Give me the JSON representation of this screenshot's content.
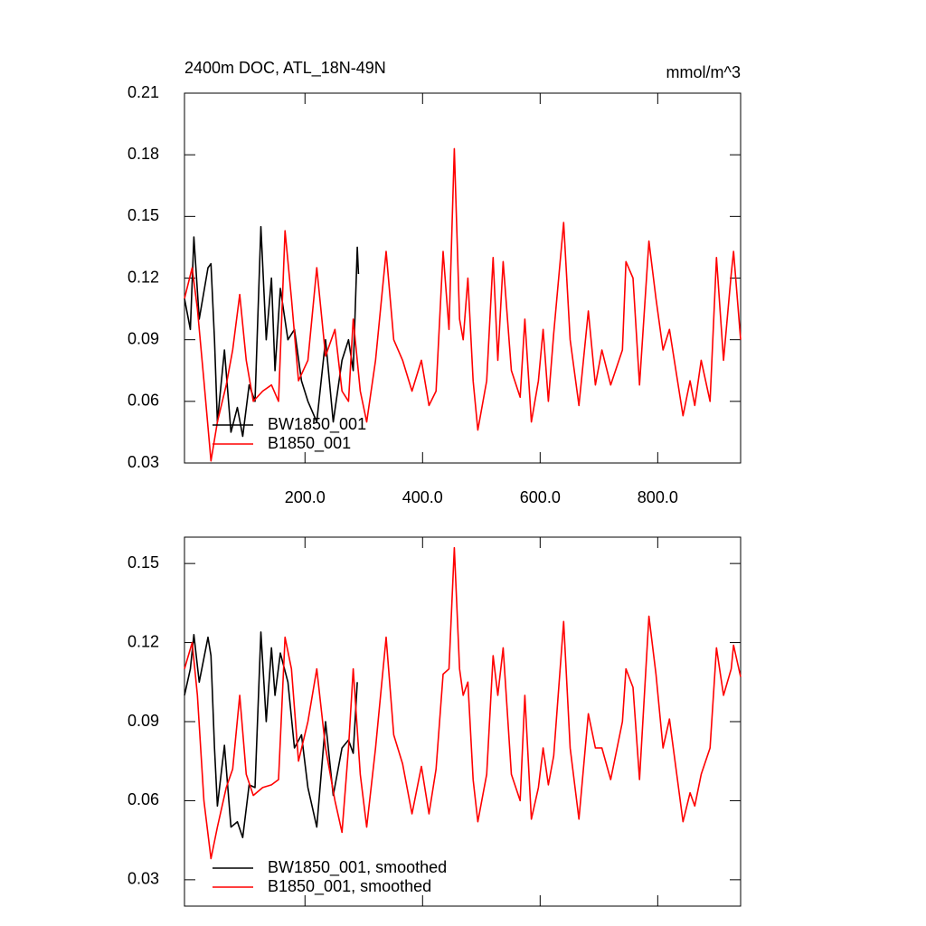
{
  "chart_data": [
    {
      "type": "line",
      "title": "2400m DOC, ATL_18N-49N",
      "units_label": "mmol/m^3",
      "xlim": [
        -5,
        941
      ],
      "ylim": [
        0.03,
        0.21
      ],
      "xticks": [
        {
          "value": 200,
          "label": "200.0"
        },
        {
          "value": 400,
          "label": "400.0"
        },
        {
          "value": 600,
          "label": "600.0"
        },
        {
          "value": 800,
          "label": "800.0"
        }
      ],
      "xtick_labels": true,
      "yticks": [
        0.03,
        0.06,
        0.09,
        0.12,
        0.15,
        0.18,
        0.21
      ],
      "legend": "lower left",
      "series": [
        {
          "name": "BW1850_001",
          "color": "#000000",
          "x": [
            -5,
            5,
            11,
            20,
            35,
            40,
            46,
            51,
            63,
            74,
            85,
            94,
            105,
            115,
            125,
            134,
            143,
            149,
            158,
            171,
            182,
            194,
            205,
            220,
            235,
            248,
            263,
            274,
            282,
            289,
            291
          ],
          "values": [
            0.11,
            0.095,
            0.14,
            0.1,
            0.125,
            0.127,
            0.09,
            0.05,
            0.085,
            0.045,
            0.057,
            0.043,
            0.068,
            0.06,
            0.145,
            0.09,
            0.12,
            0.075,
            0.115,
            0.09,
            0.095,
            0.07,
            0.06,
            0.05,
            0.09,
            0.05,
            0.08,
            0.09,
            0.075,
            0.135,
            0.122
          ]
        },
        {
          "name": "B1850_001",
          "color": "#ff0000",
          "x": [
            -5,
            8,
            17,
            28,
            40,
            51,
            66,
            77,
            89,
            100,
            112,
            128,
            143,
            155,
            166,
            177,
            189,
            205,
            220,
            235,
            251,
            263,
            274,
            282,
            294,
            305,
            320,
            338,
            351,
            366,
            382,
            398,
            411,
            423,
            435,
            445,
            454,
            463,
            469,
            477,
            486,
            494,
            509,
            520,
            528,
            537,
            551,
            566,
            574,
            585,
            597,
            605,
            614,
            623,
            640,
            651,
            666,
            682,
            694,
            705,
            720,
            740,
            746,
            758,
            769,
            785,
            797,
            809,
            820,
            843,
            855,
            863,
            874,
            889,
            900,
            912,
            925,
            929,
            941
          ],
          "values": [
            0.11,
            0.125,
            0.105,
            0.07,
            0.031,
            0.05,
            0.068,
            0.085,
            0.112,
            0.08,
            0.06,
            0.065,
            0.068,
            0.06,
            0.143,
            0.11,
            0.07,
            0.08,
            0.125,
            0.082,
            0.095,
            0.065,
            0.06,
            0.1,
            0.065,
            0.05,
            0.08,
            0.133,
            0.09,
            0.08,
            0.065,
            0.08,
            0.058,
            0.065,
            0.133,
            0.095,
            0.183,
            0.1,
            0.09,
            0.12,
            0.07,
            0.046,
            0.07,
            0.13,
            0.08,
            0.128,
            0.075,
            0.062,
            0.1,
            0.05,
            0.07,
            0.095,
            0.06,
            0.093,
            0.147,
            0.09,
            0.058,
            0.104,
            0.068,
            0.085,
            0.068,
            0.085,
            0.128,
            0.12,
            0.068,
            0.138,
            0.11,
            0.085,
            0.095,
            0.053,
            0.07,
            0.058,
            0.08,
            0.06,
            0.13,
            0.08,
            0.122,
            0.133,
            0.09
          ]
        }
      ]
    },
    {
      "type": "line",
      "xlim": [
        -5,
        941
      ],
      "ylim": [
        0.02,
        0.16
      ],
      "xticks": [
        200,
        400,
        600,
        800
      ],
      "xtick_labels": false,
      "yticks": [
        0.03,
        0.06,
        0.09,
        0.12,
        0.15
      ],
      "legend": "lower left",
      "series": [
        {
          "name": "BW1850_001, smoothed",
          "color": "#000000",
          "x": [
            -5,
            5,
            11,
            20,
            35,
            40,
            46,
            51,
            63,
            74,
            85,
            94,
            105,
            115,
            125,
            134,
            143,
            149,
            158,
            171,
            182,
            194,
            205,
            220,
            235,
            248,
            263,
            274,
            282,
            289
          ],
          "values": [
            0.1,
            0.11,
            0.123,
            0.105,
            0.122,
            0.115,
            0.08,
            0.058,
            0.081,
            0.05,
            0.052,
            0.046,
            0.066,
            0.065,
            0.124,
            0.09,
            0.118,
            0.1,
            0.116,
            0.105,
            0.08,
            0.085,
            0.065,
            0.05,
            0.09,
            0.062,
            0.08,
            0.083,
            0.078,
            0.105
          ]
        },
        {
          "name": "B1850_001, smoothed",
          "color": "#ff0000",
          "x": [
            -5,
            8,
            17,
            28,
            40,
            51,
            66,
            77,
            89,
            100,
            112,
            128,
            143,
            155,
            166,
            177,
            189,
            205,
            220,
            235,
            251,
            263,
            274,
            282,
            294,
            305,
            320,
            338,
            351,
            366,
            382,
            398,
            411,
            423,
            435,
            445,
            454,
            463,
            469,
            477,
            486,
            494,
            509,
            520,
            528,
            537,
            551,
            566,
            574,
            585,
            597,
            605,
            614,
            623,
            640,
            651,
            666,
            682,
            694,
            705,
            720,
            740,
            746,
            758,
            769,
            785,
            797,
            809,
            820,
            843,
            855,
            863,
            874,
            889,
            900,
            912,
            925,
            929,
            941
          ],
          "values": [
            0.11,
            0.12,
            0.1,
            0.06,
            0.038,
            0.05,
            0.065,
            0.072,
            0.1,
            0.07,
            0.062,
            0.065,
            0.066,
            0.068,
            0.122,
            0.11,
            0.075,
            0.09,
            0.11,
            0.08,
            0.06,
            0.048,
            0.08,
            0.11,
            0.07,
            0.05,
            0.08,
            0.122,
            0.085,
            0.074,
            0.055,
            0.073,
            0.055,
            0.072,
            0.108,
            0.11,
            0.156,
            0.11,
            0.1,
            0.105,
            0.068,
            0.052,
            0.07,
            0.115,
            0.1,
            0.118,
            0.07,
            0.06,
            0.1,
            0.053,
            0.065,
            0.08,
            0.066,
            0.077,
            0.128,
            0.08,
            0.053,
            0.093,
            0.08,
            0.08,
            0.068,
            0.09,
            0.11,
            0.103,
            0.068,
            0.13,
            0.108,
            0.08,
            0.091,
            0.052,
            0.063,
            0.058,
            0.07,
            0.08,
            0.118,
            0.1,
            0.11,
            0.119,
            0.107
          ]
        }
      ]
    }
  ]
}
